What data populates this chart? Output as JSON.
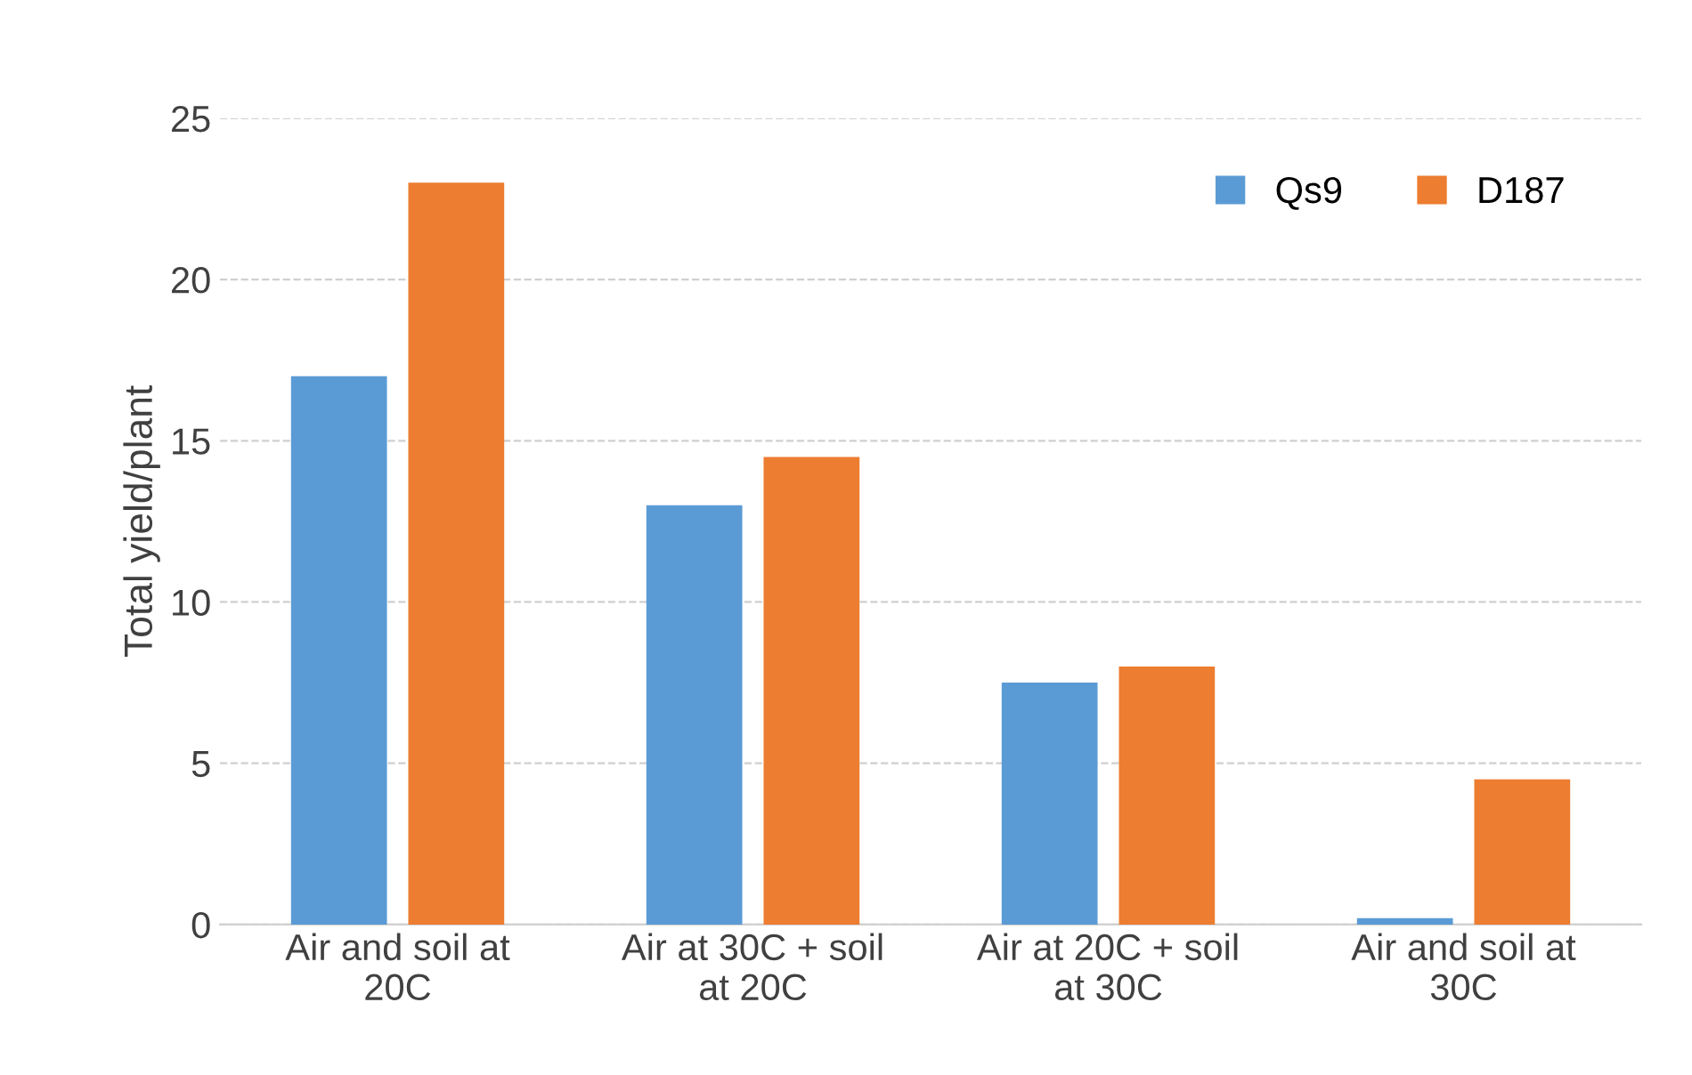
{
  "chart_data": {
    "type": "bar",
    "ylabel": "Total yield/plant",
    "categories": [
      "Air and soil at 20C",
      "Air at 30C + soil at 20C",
      "Air at 20C + soil at 30C",
      "Air and soil at 30C"
    ],
    "series": [
      {
        "name": "Qs9",
        "color": "#5b9bd5",
        "values": [
          17,
          13,
          7.5,
          0.2
        ]
      },
      {
        "name": "D187",
        "color": "#ed7d31",
        "values": [
          23,
          14.5,
          8,
          4.5
        ]
      }
    ],
    "ylim": [
      0,
      25
    ],
    "yticks": [
      0,
      5,
      10,
      15,
      20,
      25
    ],
    "grid": "y",
    "legend": "top right"
  }
}
